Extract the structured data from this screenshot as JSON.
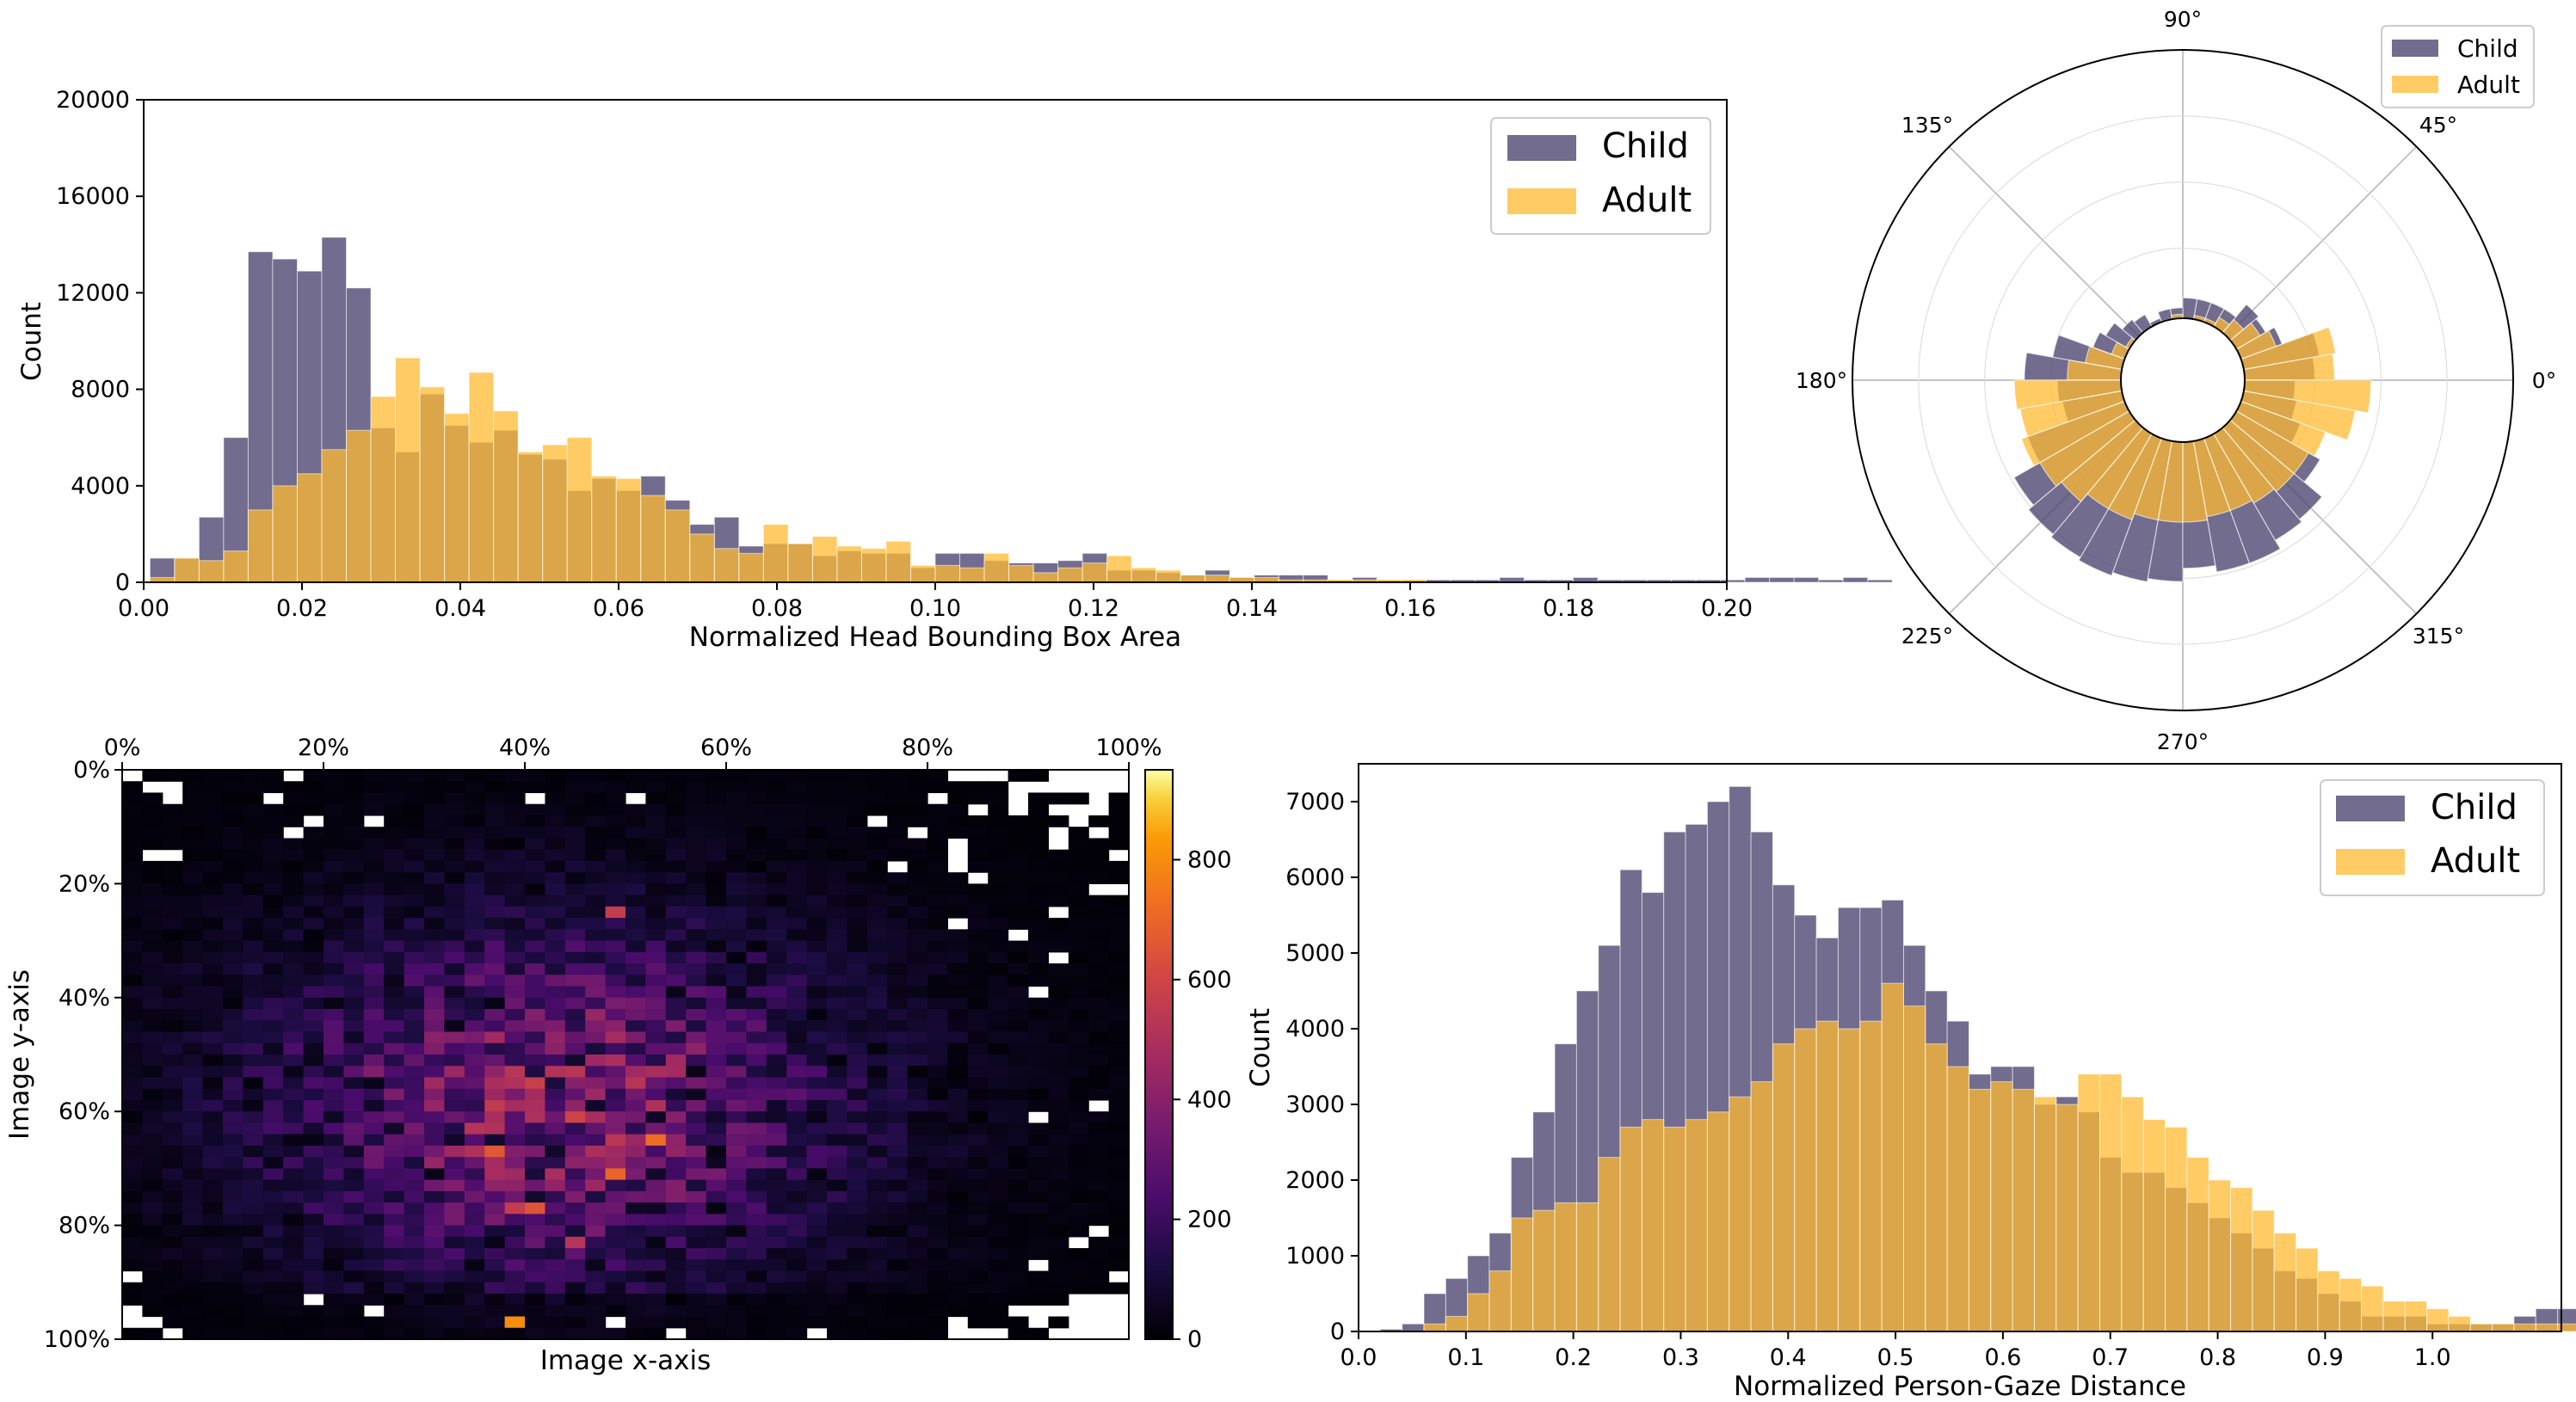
{
  "colors": {
    "child": "#4f4772",
    "adult": "#fdb931",
    "child_opacity": 0.8,
    "adult_opacity": 0.75,
    "heatmap_colormap": "inferno"
  },
  "chart_data": [
    {
      "id": "head-area",
      "type": "bar",
      "xlabel": "Normalized Head Bounding Box Area",
      "ylabel": "Count",
      "xlim": [
        0,
        0.2
      ],
      "ylim": [
        0,
        20000
      ],
      "xticks": [
        0,
        0.02,
        0.04,
        0.06,
        0.08,
        0.1,
        0.12,
        0.14,
        0.16,
        0.18,
        0.2
      ],
      "xtick_labels": [
        "0.00",
        "0.02",
        "0.04",
        "0.06",
        "0.08",
        "0.10",
        "0.12",
        "0.14",
        "0.16",
        "0.18",
        "0.20"
      ],
      "yticks": [
        0,
        4000,
        8000,
        12000,
        16000,
        20000
      ],
      "ytick_labels": [
        "0",
        "4000",
        "8000",
        "12000",
        "16000",
        "20000"
      ],
      "legend": {
        "position": "top-right",
        "entries": [
          "Child",
          "Adult"
        ]
      },
      "bin_start": 0.0008,
      "bin_width": 0.0031,
      "series": [
        {
          "name": "Child",
          "values": [
            1000,
            1000,
            2700,
            6000,
            13700,
            13400,
            12900,
            14300,
            12200,
            6400,
            5400,
            7800,
            6500,
            5800,
            6300,
            5300,
            5100,
            3800,
            4300,
            3800,
            4400,
            3400,
            2400,
            2700,
            1500,
            1600,
            1600,
            1100,
            1300,
            1200,
            1200,
            600,
            1200,
            1200,
            900,
            800,
            800,
            900,
            1200,
            500,
            500,
            400,
            300,
            500,
            200,
            300,
            300,
            300,
            100,
            200,
            100,
            100,
            100,
            100,
            100,
            200,
            100,
            100,
            200,
            100,
            100,
            100,
            100,
            100,
            100,
            200,
            200,
            200,
            100,
            200,
            100,
            0,
            0,
            0
          ]
        },
        {
          "name": "Adult",
          "values": [
            200,
            1000,
            900,
            1300,
            3000,
            4000,
            4500,
            5500,
            6300,
            7700,
            9300,
            8100,
            7000,
            8700,
            7100,
            5400,
            5700,
            6000,
            4400,
            4300,
            3600,
            3000,
            2000,
            1400,
            1200,
            2400,
            1600,
            1900,
            1500,
            1400,
            1700,
            700,
            700,
            600,
            1200,
            700,
            400,
            600,
            800,
            1100,
            600,
            500,
            300,
            300,
            200,
            200,
            100,
            100,
            100,
            100,
            100,
            100,
            0,
            0,
            0,
            0,
            0,
            0,
            0,
            0,
            0,
            0,
            0,
            0,
            0,
            0,
            0,
            0,
            0,
            0,
            0,
            0,
            0,
            0
          ]
        }
      ]
    },
    {
      "id": "gaze-direction",
      "type": "polar-bar",
      "theta_ticks": [
        0,
        45,
        90,
        135,
        180,
        225,
        270,
        315
      ],
      "theta_tick_labels": [
        "0°",
        "45°",
        "90°",
        "135°",
        "180°",
        "225°",
        "270°",
        "315°"
      ],
      "bin_width_deg": 10,
      "bin_centers_deg": [
        5,
        15,
        25,
        35,
        45,
        55,
        65,
        75,
        85,
        95,
        105,
        115,
        125,
        135,
        145,
        155,
        165,
        175,
        185,
        195,
        205,
        215,
        225,
        235,
        245,
        255,
        265,
        275,
        285,
        295,
        305,
        315,
        325,
        335,
        345,
        355
      ],
      "r_max": 10,
      "r_inner": 1.88,
      "legend": {
        "position": "top-right",
        "entries": [
          "Child",
          "Adult"
        ]
      },
      "series": [
        {
          "name": "Child",
          "values": [
            4.0,
            4.2,
            3.2,
            2.9,
            3.0,
            2.5,
            2.5,
            2.5,
            2.5,
            2.2,
            2.2,
            2.0,
            2.3,
            2.4,
            2.7,
            2.9,
            4.0,
            4.8,
            3.8,
            3.7,
            5.0,
            5.9,
            6.1,
            6.2,
            6.3,
            6.2,
            6.1,
            5.7,
            5.9,
            5.9,
            5.6,
            5.5,
            4.8,
            3.8,
            3.5,
            3.4
          ]
        },
        {
          "name": "Adult",
          "values": [
            4.6,
            4.7,
            3.0,
            2.7,
            2.4,
            2.2,
            2.0,
            2.0,
            1.8,
            2.0,
            1.9,
            1.8,
            1.8,
            1.8,
            2.0,
            2.3,
            3.0,
            3.5,
            5.1,
            5.0,
            5.2,
            5.0,
            4.8,
            4.5,
            4.5,
            4.3,
            4.3,
            4.3,
            4.2,
            4.2,
            4.3,
            4.4,
            4.4,
            4.6,
            5.3,
            5.7
          ]
        }
      ]
    },
    {
      "id": "head-location",
      "type": "heatmap",
      "xlabel": "Image x-axis",
      "ylabel": "Image y-axis",
      "xticks": [
        0,
        20,
        40,
        60,
        80,
        100
      ],
      "xtick_labels": [
        "0%",
        "20%",
        "40%",
        "60%",
        "80%",
        "100%"
      ],
      "yticks": [
        0,
        20,
        40,
        60,
        80,
        100
      ],
      "ytick_labels": [
        "0%",
        "20%",
        "40%",
        "60%",
        "80%",
        "100%"
      ],
      "x_axis_position": "top",
      "grid_columns": 50,
      "grid_rows": 50,
      "colorbar": {
        "min": 0,
        "max": 950,
        "ticks": [
          0,
          200,
          400,
          600,
          800
        ],
        "tick_labels": [
          "0",
          "200",
          "400",
          "600",
          "800"
        ]
      },
      "hotspots": [
        {
          "x": 39.5,
          "y": 97.5,
          "value": 950
        },
        {
          "x": 39.5,
          "y": 96.5,
          "value": 800
        },
        {
          "x": 52.5,
          "y": 64.5,
          "value": 720
        },
        {
          "x": 49.5,
          "y": 70.5,
          "value": 700
        },
        {
          "x": 37.5,
          "y": 66.5,
          "value": 660
        },
        {
          "x": 41.5,
          "y": 76.5,
          "value": 650
        },
        {
          "x": 49.5,
          "y": 24.5,
          "value": 560
        },
        {
          "x": 38.5,
          "y": 76.5,
          "value": 560
        },
        {
          "x": 45.5,
          "y": 82.5,
          "value": 520
        }
      ]
    },
    {
      "id": "gaze-distance",
      "type": "bar",
      "xlabel": "Normalized Person-Gaze Distance",
      "ylabel": "Count",
      "xlim": [
        0,
        1.12
      ],
      "ylim": [
        0,
        7500
      ],
      "xticks": [
        0,
        0.1,
        0.2,
        0.3,
        0.4,
        0.5,
        0.6,
        0.7,
        0.8,
        0.9,
        1.0
      ],
      "xtick_labels": [
        "0.0",
        "0.1",
        "0.2",
        "0.3",
        "0.4",
        "0.5",
        "0.6",
        "0.7",
        "0.8",
        "0.9",
        "1.0"
      ],
      "yticks": [
        0,
        1000,
        2000,
        3000,
        4000,
        5000,
        6000,
        7000
      ],
      "ytick_labels": [
        "0",
        "1000",
        "2000",
        "3000",
        "4000",
        "5000",
        "6000",
        "7000"
      ],
      "legend": {
        "position": "top-right",
        "entries": [
          "Child",
          "Adult"
        ]
      },
      "bin_start": 0.0,
      "bin_width": 0.0203,
      "series": [
        {
          "name": "Child",
          "values": [
            0,
            30,
            100,
            500,
            700,
            1000,
            1300,
            2300,
            2900,
            3800,
            4500,
            5100,
            6100,
            5800,
            6600,
            6700,
            7000,
            7200,
            6600,
            5900,
            5500,
            5200,
            5600,
            5600,
            5700,
            5100,
            4500,
            4100,
            3400,
            3500,
            3500,
            3000,
            3100,
            2900,
            2300,
            2100,
            2100,
            1900,
            1700,
            1500,
            1300,
            1100,
            800,
            700,
            500,
            400,
            200,
            200,
            200,
            100,
            100,
            100,
            100,
            200,
            300,
            300,
            1000,
            700,
            100,
            0,
            0,
            0,
            0,
            0
          ]
        },
        {
          "name": "Adult",
          "values": [
            0,
            0,
            0,
            100,
            200,
            500,
            800,
            1500,
            1600,
            1700,
            1700,
            2300,
            2700,
            2800,
            2700,
            2800,
            2900,
            3100,
            3300,
            3800,
            4000,
            4100,
            4000,
            4100,
            4600,
            4300,
            3800,
            3500,
            3200,
            3300,
            3200,
            3100,
            3000,
            3400,
            3400,
            3100,
            2800,
            2700,
            2300,
            2000,
            1900,
            1600,
            1300,
            1100,
            800,
            700,
            600,
            400,
            400,
            300,
            200,
            100,
            100,
            100,
            100,
            100,
            100,
            50,
            0,
            0,
            0,
            0,
            0,
            0
          ]
        }
      ]
    }
  ]
}
